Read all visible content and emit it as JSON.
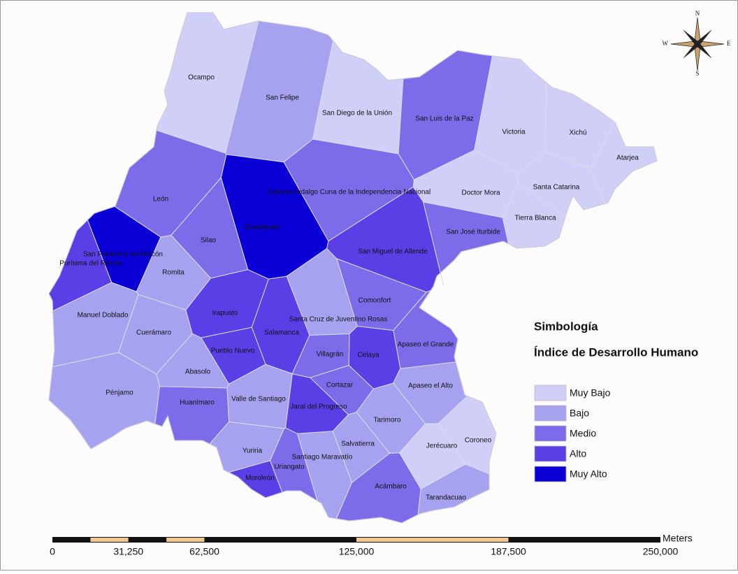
{
  "map": {
    "municipalities": [
      {
        "name": "Ocampo",
        "color": "#cfcff8"
      },
      {
        "name": "San Felipe",
        "color": "#a7a2f0"
      },
      {
        "name": "San Diego de la Unión",
        "color": "#cfcff8"
      },
      {
        "name": "San Luis de la Paz",
        "color": "#7c6cea"
      },
      {
        "name": "Victoria",
        "color": "#cfcff8"
      },
      {
        "name": "Xichú",
        "color": "#cfcff8"
      },
      {
        "name": "Atarjea",
        "color": "#cfcff8"
      },
      {
        "name": "Santa Catarina",
        "color": "#cfcff8"
      },
      {
        "name": "Doctor Mora",
        "color": "#cfcff8"
      },
      {
        "name": "Tierra Blanca",
        "color": "#cfcff8"
      },
      {
        "name": "Dolores Hidalgo Cuna de la Independencia Nacional",
        "color": "#7c6cea"
      },
      {
        "name": "León",
        "color": "#7c6cea"
      },
      {
        "name": "Guanajuato",
        "color": "#0a00d6"
      },
      {
        "name": "Silao",
        "color": "#7c6cea"
      },
      {
        "name": "San Francisco del Rincón",
        "color": "#0a00d6"
      },
      {
        "name": "Purísima del Rincón",
        "color": "#5a3ee6"
      },
      {
        "name": "Romita",
        "color": "#a7a2f0"
      },
      {
        "name": "San Miguel de Allende",
        "color": "#5a3ee6"
      },
      {
        "name": "San José Iturbide",
        "color": "#7c6cea"
      },
      {
        "name": "Manuel Doblado",
        "color": "#a7a2f0"
      },
      {
        "name": "Cuerámaro",
        "color": "#a7a2f0"
      },
      {
        "name": "Irapuato",
        "color": "#5a3ee6"
      },
      {
        "name": "Comonfort",
        "color": "#7c6cea"
      },
      {
        "name": "Santa Cruz de Juventino Rosas",
        "color": "#a7a2f0"
      },
      {
        "name": "Salamanca",
        "color": "#5a3ee6"
      },
      {
        "name": "Celaya",
        "color": "#5a3ee6"
      },
      {
        "name": "Apaseo el Grande",
        "color": "#7c6cea"
      },
      {
        "name": "Pueblo Nuevo",
        "color": "#5a3ee6"
      },
      {
        "name": "Villagrán",
        "color": "#7c6cea"
      },
      {
        "name": "Abasolo",
        "color": "#a7a2f0"
      },
      {
        "name": "Pénjamo",
        "color": "#a7a2f0"
      },
      {
        "name": "Cortazar",
        "color": "#7c6cea"
      },
      {
        "name": "Apaseo el Alto",
        "color": "#a7a2f0"
      },
      {
        "name": "Huanímaro",
        "color": "#7c6cea"
      },
      {
        "name": "Valle de Santiago",
        "color": "#a7a2f0"
      },
      {
        "name": "Jaral del Progreso",
        "color": "#5a3ee6"
      },
      {
        "name": "Tarimoro",
        "color": "#a7a2f0"
      },
      {
        "name": "Jerécuaro",
        "color": "#cfcff8"
      },
      {
        "name": "Coroneo",
        "color": "#cfcff8"
      },
      {
        "name": "Salvatierra",
        "color": "#a7a2f0"
      },
      {
        "name": "Yuriria",
        "color": "#a7a2f0"
      },
      {
        "name": "Santiago Maravatío",
        "color": "#a7a2f0"
      },
      {
        "name": "Uriangato",
        "color": "#7c6cea"
      },
      {
        "name": "Moroleón",
        "color": "#5a3ee6"
      },
      {
        "name": "Acámbaro",
        "color": "#7c6cea"
      },
      {
        "name": "Tarandacuao",
        "color": "#a7a2f0"
      }
    ]
  },
  "legend": {
    "title": "Simbología",
    "subtitle": "Índice de Desarrollo Humano",
    "items": [
      {
        "label": "Muy Bajo",
        "color": "#cfcff8"
      },
      {
        "label": "Bajo",
        "color": "#a7a2f0"
      },
      {
        "label": "Medio",
        "color": "#7c6cea"
      },
      {
        "label": "Alto",
        "color": "#5a3ee6"
      },
      {
        "label": "Muy Alto",
        "color": "#0a00d6"
      }
    ]
  },
  "scale_bar": {
    "unit": "Meters",
    "ticks": [
      0,
      {
        "value": 31250,
        "label": "31,250"
      },
      {
        "value": 62500,
        "label": "62,500"
      },
      {
        "value": 125000,
        "label": "125,000"
      },
      {
        "value": 187500,
        "label": "187,500"
      },
      {
        "value": 250000,
        "label": "250,000"
      }
    ]
  },
  "compass": {
    "north": "N",
    "south": "S",
    "east": "E",
    "west": "W"
  }
}
